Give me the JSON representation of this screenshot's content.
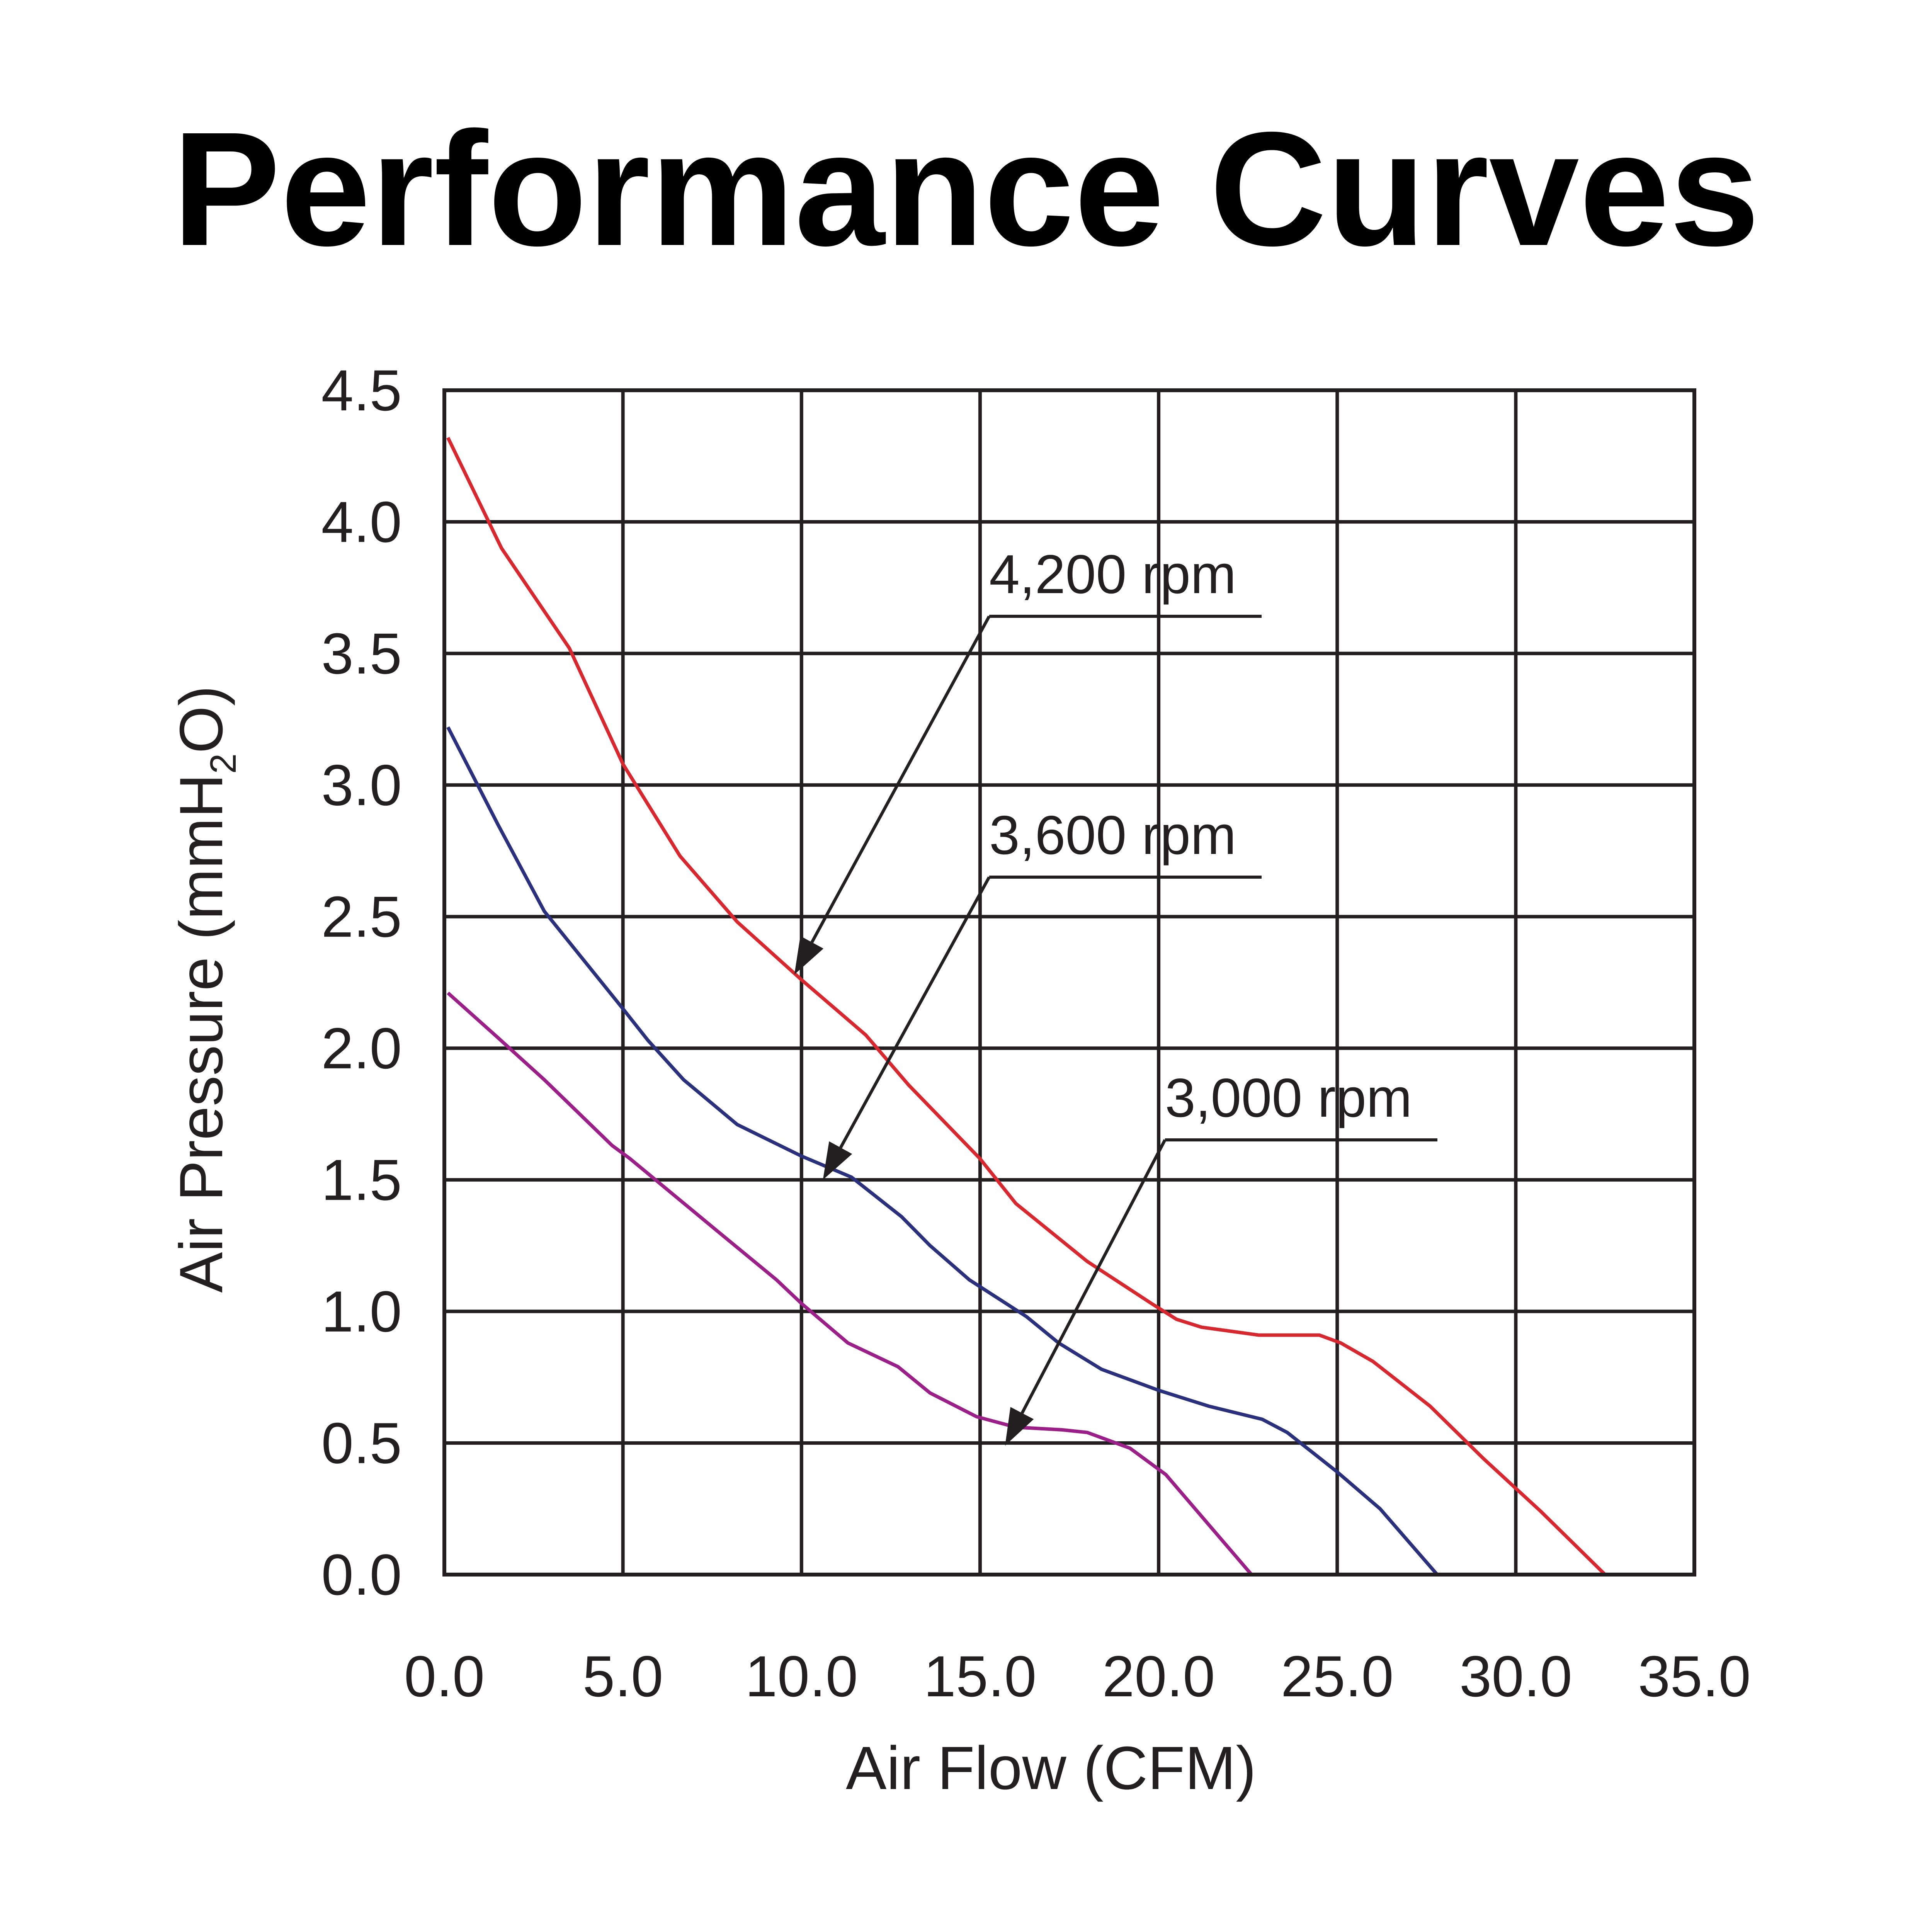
{
  "chart_data": {
    "type": "line",
    "title": "Performance Curves",
    "xlabel": "Air Flow (CFM)",
    "ylabel_main": "Air Pressure (mmH",
    "ylabel_sub": "2",
    "ylabel_end": "O)",
    "xlim": [
      0,
      35
    ],
    "ylim": [
      0,
      4.5
    ],
    "grid": true,
    "x_ticks": [
      "0.0",
      "5.0",
      "10.0",
      "15.0",
      "20.0",
      "25.0",
      "30.0",
      "35.0"
    ],
    "y_ticks": [
      "0.0",
      "0.5",
      "1.0",
      "1.5",
      "2.0",
      "2.5",
      "3.0",
      "3.5",
      "4.0",
      "4.5"
    ],
    "series": [
      {
        "name": "4,200 rpm",
        "color": "#d7282f",
        "arrow_at": {
          "x": 9.8,
          "y": 2.28
        },
        "x": [
          0.1,
          1.6,
          3.5,
          5.0,
          6.6,
          8.2,
          10.0,
          11.8,
          13.0,
          15.0,
          16.0,
          18.0,
          19.8,
          20.5,
          21.2,
          22.8,
          24.5,
          25.1,
          26.0,
          27.6,
          29.1,
          30.7,
          32.5
        ],
        "y": [
          4.32,
          3.9,
          3.52,
          3.08,
          2.73,
          2.48,
          2.26,
          2.05,
          1.86,
          1.58,
          1.41,
          1.19,
          1.03,
          0.97,
          0.94,
          0.91,
          0.91,
          0.88,
          0.81,
          0.64,
          0.44,
          0.24,
          0.0
        ]
      },
      {
        "name": "3,600 rpm",
        "color": "#2b307c",
        "arrow_at": {
          "x": 10.6,
          "y": 1.5
        },
        "x": [
          0.1,
          1.5,
          2.8,
          5.0,
          5.7,
          6.7,
          8.2,
          10.0,
          11.4,
          12.8,
          13.6,
          14.7,
          16.3,
          17.2,
          18.4,
          20.0,
          21.4,
          22.9,
          23.6,
          25.0,
          26.2,
          27.8
        ],
        "y": [
          3.22,
          2.85,
          2.52,
          2.15,
          2.03,
          1.88,
          1.71,
          1.59,
          1.51,
          1.36,
          1.25,
          1.12,
          0.98,
          0.88,
          0.78,
          0.7,
          0.64,
          0.59,
          0.54,
          0.39,
          0.25,
          0.0
        ]
      },
      {
        "name": "3,000 rpm",
        "color": "#9b1f88",
        "arrow_at": {
          "x": 15.7,
          "y": 0.49
        },
        "x": [
          0.1,
          1.5,
          2.8,
          4.7,
          5.2,
          7.6,
          9.3,
          10.0,
          11.3,
          12.7,
          13.6,
          14.9,
          16.0,
          17.3,
          18.0,
          19.2,
          20.2,
          22.6
        ],
        "y": [
          2.21,
          2.04,
          1.88,
          1.63,
          1.58,
          1.31,
          1.12,
          1.03,
          0.88,
          0.79,
          0.69,
          0.6,
          0.56,
          0.55,
          0.54,
          0.48,
          0.38,
          0.0
        ]
      }
    ]
  }
}
